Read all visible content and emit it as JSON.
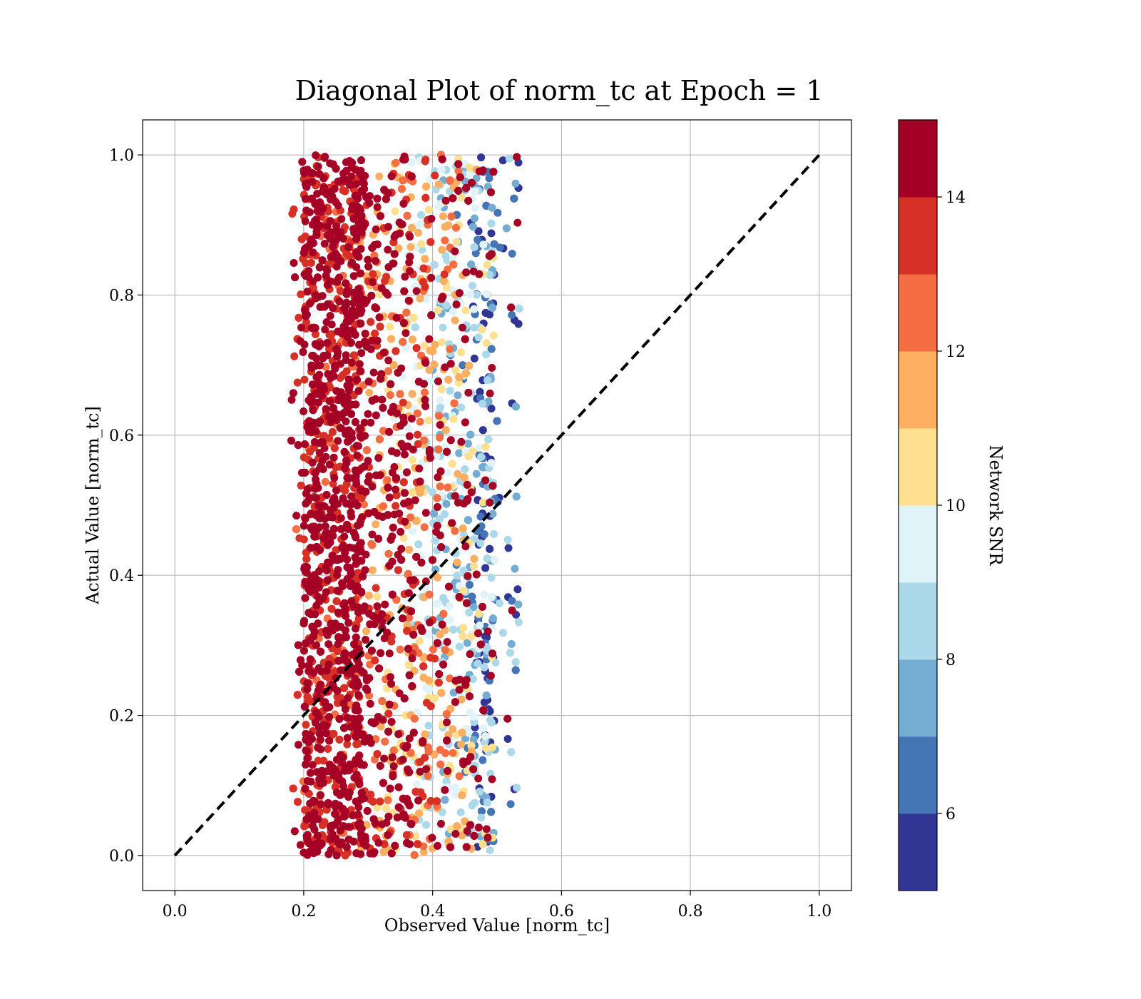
{
  "chart_data": {
    "type": "scatter",
    "title": "Diagonal Plot of norm_tc at Epoch = 1",
    "xlabel": "Observed Value [norm_tc]",
    "ylabel": "Actual Value [norm_tc]",
    "xlim": [
      -0.05,
      1.05
    ],
    "ylim": [
      -0.05,
      1.05
    ],
    "xticks": [
      0.0,
      0.2,
      0.4,
      0.6,
      0.8,
      1.0
    ],
    "yticks": [
      0.0,
      0.2,
      0.4,
      0.6,
      0.8,
      1.0
    ],
    "xtick_labels": [
      "0.0",
      "0.2",
      "0.4",
      "0.6",
      "0.8",
      "1.0"
    ],
    "ytick_labels": [
      "0.0",
      "0.2",
      "0.4",
      "0.6",
      "0.8",
      "1.0"
    ],
    "grid": true,
    "reference_line": {
      "style": "dashed",
      "color": "#000000",
      "x": [
        0.0,
        1.0
      ],
      "y": [
        0.0,
        1.0
      ]
    },
    "scatter": {
      "x_range": [
        0.18,
        0.535
      ],
      "y_range": [
        0.0,
        1.0
      ],
      "dense_core_x_range": [
        0.2,
        0.29
      ],
      "trend": "high SNR concentrated near observed 0.2-0.3; SNR decreases toward observed 0.45-0.5"
    },
    "colorbar": {
      "label": "Network SNR",
      "range": [
        5,
        15
      ],
      "ticks": [
        6,
        8,
        10,
        12,
        14
      ],
      "tick_labels": [
        "6",
        "8",
        "10",
        "12",
        "14"
      ],
      "bins": [
        {
          "from": 5,
          "to": 6,
          "color": "#313695"
        },
        {
          "from": 6,
          "to": 7,
          "color": "#4575b4"
        },
        {
          "from": 7,
          "to": 8,
          "color": "#74add1"
        },
        {
          "from": 8,
          "to": 9,
          "color": "#abd9e9"
        },
        {
          "from": 9,
          "to": 10,
          "color": "#e0f3f8"
        },
        {
          "from": 10,
          "to": 11,
          "color": "#fee090"
        },
        {
          "from": 11,
          "to": 12,
          "color": "#fdae61"
        },
        {
          "from": 12,
          "to": 13,
          "color": "#f46d43"
        },
        {
          "from": 13,
          "to": 14,
          "color": "#d73027"
        },
        {
          "from": 14,
          "to": 15,
          "color": "#a50026"
        }
      ]
    }
  }
}
